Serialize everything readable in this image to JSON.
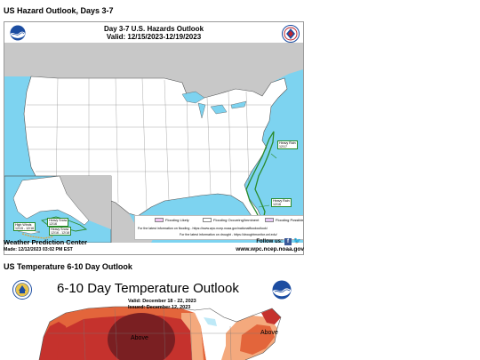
{
  "hazards": {
    "section_title": "US Hazard Outlook, Days 3-7",
    "map_title": "Day 3-7 U.S. Hazards Outlook",
    "valid": "Valid: 12/15/2023-12/19/2023",
    "legend": {
      "items": [
        {
          "label": "Flooding Likely",
          "color": "#f2c6f2"
        },
        {
          "label": "Flooding Occurring/Imminent",
          "color": "#ffffff"
        },
        {
          "label": "Flooding Possible",
          "color": "#e6c7f5"
        }
      ],
      "note1": "For the latest information on flooding - https://www.wpc.ncep.noaa.gov/nationalfloodoutlook/",
      "note2": "For the latest information on drought - https://droughtmonitor.unl.edu/"
    },
    "map_labels": {
      "east1": "Heavy Rain",
      "east1_date": "12/17",
      "east2": "Heavy Rain",
      "east2_date": "12/16",
      "ak1": "High Winds",
      "ak1_date": "12/15 - 12/16",
      "ak2": "Heavy Snow",
      "ak2_date": "12/16",
      "ak3": "Heavy Snow",
      "ak3_date": "12/16 - 12/18"
    },
    "footer": {
      "center": "Weather Prediction Center",
      "made": "Made: 12/12/2023 03:02 PM EST",
      "follow": "Follow us:",
      "url": "www.wpc.ncep.noaa.gov"
    },
    "colors": {
      "water": "#7dd3f0",
      "land_us": "#ffffff",
      "land_other": "#c8c8c8",
      "hazard_outline": "#2a8a2a"
    }
  },
  "temperature": {
    "section_title": "US Temperature 6-10 Day Outlook",
    "map_title": "6-10 Day Temperature Outlook",
    "valid": "Valid:   December 18 - 22, 2023",
    "issued": "Issued:  December 12, 2023",
    "labels": {
      "above_center": "Above",
      "above_east": "Above"
    },
    "colors": {
      "dark": "#7a1f22",
      "red": "#c5322d",
      "orange": "#e3653b",
      "light": "#f4a97d",
      "pale": "#fbd9c2"
    }
  }
}
